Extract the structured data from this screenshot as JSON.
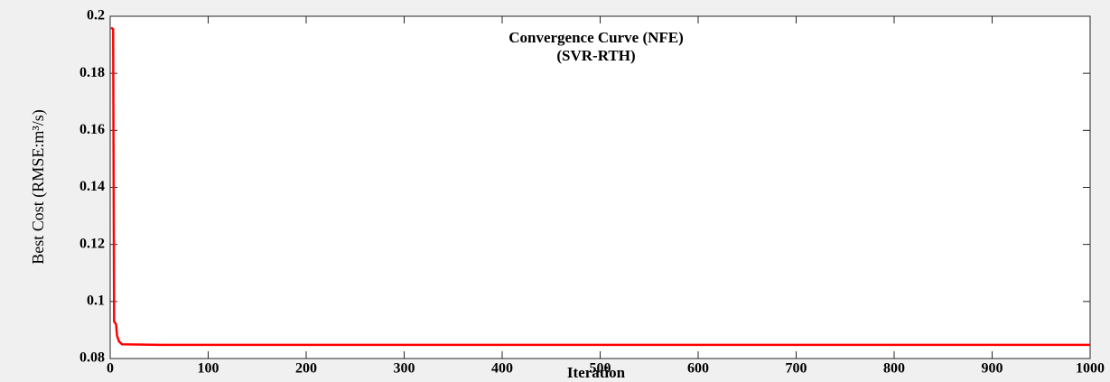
{
  "chart_data": {
    "type": "line",
    "title": "Convergence Curve (NFE)",
    "subtitle": "(SVR-RTH)",
    "xlabel": "Iteration",
    "ylabel": "Best Cost (RMSE:m³/s)",
    "x": [
      1,
      3,
      4,
      6,
      7,
      9,
      12,
      50,
      1000
    ],
    "series": [
      {
        "name": "Best Cost",
        "color": "#ff0000",
        "values": [
          0.196,
          0.1955,
          0.093,
          0.092,
          0.088,
          0.086,
          0.085,
          0.0848,
          0.0848
        ]
      }
    ],
    "xlim": [
      0,
      1000
    ],
    "xticks": [
      0,
      100,
      200,
      300,
      400,
      500,
      600,
      700,
      800,
      900,
      1000
    ],
    "ylim": [
      0.08,
      0.2
    ],
    "yticks": [
      0.08,
      0.1,
      0.12,
      0.14,
      0.16,
      0.18,
      0.2
    ],
    "grid": false
  }
}
